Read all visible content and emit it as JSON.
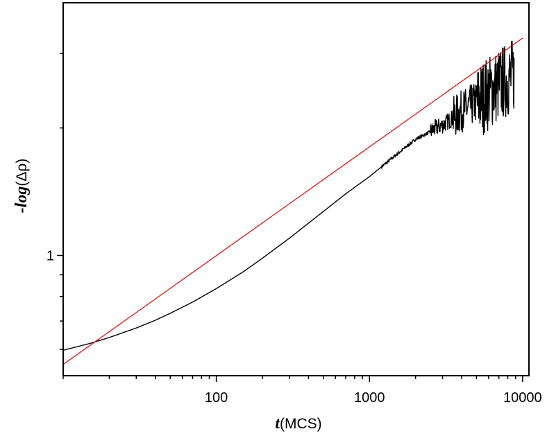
{
  "chart_data": {
    "type": "line",
    "xscale": "log",
    "yscale": "log",
    "xlim": [
      10,
      11000
    ],
    "ylim": [
      0.52,
      3.95
    ],
    "x_ticks": [
      {
        "value": 100,
        "label": "100"
      },
      {
        "value": 1000,
        "label": "1000"
      },
      {
        "value": 10000,
        "label": "10000"
      }
    ],
    "y_ticks": [
      {
        "value": 1,
        "label": "1"
      }
    ],
    "xlabel": {
      "italic": "t",
      "plain": "(MCS)"
    },
    "ylabel": {
      "italic": "-log",
      "plain": "(Δρ)"
    },
    "grid": false,
    "colors": {
      "data": "#000000",
      "fit": "#e00000"
    },
    "series": [
      {
        "style": "black",
        "x": [
          10,
          15,
          20,
          30,
          40,
          50,
          70,
          100,
          150,
          200,
          300,
          400,
          500,
          700,
          1000,
          1500,
          2000,
          2500,
          2700,
          3000,
          3500,
          4000,
          5000,
          6000,
          7000,
          8000,
          8800
        ],
        "y": [
          0.597,
          0.62,
          0.64,
          0.674,
          0.703,
          0.73,
          0.776,
          0.835,
          0.915,
          0.985,
          1.098,
          1.192,
          1.27,
          1.398,
          1.535,
          1.73,
          1.88,
          1.96,
          2.0,
          2.03,
          2.11,
          2.19,
          2.3,
          2.42,
          2.53,
          2.6,
          2.67
        ]
      },
      {
        "style": "red",
        "x": [
          10,
          10000
        ],
        "y": [
          0.553,
          3.26
        ]
      }
    ]
  }
}
